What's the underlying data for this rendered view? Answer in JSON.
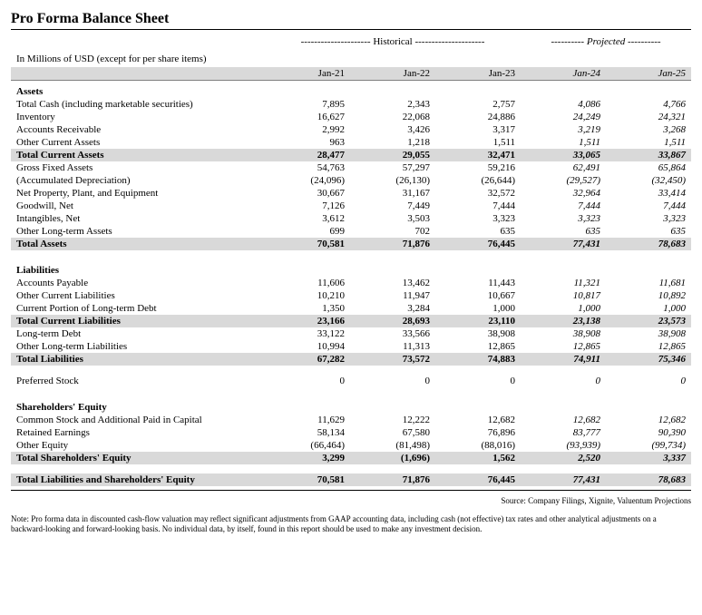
{
  "title": "Pro Forma Balance Sheet",
  "subtitle": "In Millions of USD (except for per share items)",
  "group_headers": {
    "historical_label": "Historical",
    "projected_label": "Projected"
  },
  "columns": [
    "Jan-21",
    "Jan-22",
    "Jan-23",
    "Jan-24",
    "Jan-25"
  ],
  "projected_start_index": 3,
  "sections": [
    {
      "type": "section",
      "label": "Assets"
    },
    {
      "type": "row",
      "label": "Total Cash (including marketable securities)",
      "vals": [
        "7,895",
        "2,343",
        "2,757",
        "4,086",
        "4,766"
      ]
    },
    {
      "type": "row",
      "label": "Inventory",
      "vals": [
        "16,627",
        "22,068",
        "24,886",
        "24,249",
        "24,321"
      ]
    },
    {
      "type": "row",
      "label": "Accounts Receivable",
      "vals": [
        "2,992",
        "3,426",
        "3,317",
        "3,219",
        "3,268"
      ]
    },
    {
      "type": "row",
      "label": "Other Current Assets",
      "vals": [
        "963",
        "1,218",
        "1,511",
        "1,511",
        "1,511"
      ]
    },
    {
      "type": "total",
      "label": "Total Current Assets",
      "vals": [
        "28,477",
        "29,055",
        "32,471",
        "33,065",
        "33,867"
      ]
    },
    {
      "type": "row",
      "label": "Gross Fixed Assets",
      "vals": [
        "54,763",
        "57,297",
        "59,216",
        "62,491",
        "65,864"
      ]
    },
    {
      "type": "row",
      "label": "(Accumulated Depreciation)",
      "vals": [
        "(24,096)",
        "(26,130)",
        "(26,644)",
        "(29,527)",
        "(32,450)"
      ]
    },
    {
      "type": "row",
      "label": "Net Property, Plant, and Equipment",
      "vals": [
        "30,667",
        "31,167",
        "32,572",
        "32,964",
        "33,414"
      ]
    },
    {
      "type": "row",
      "label": "Goodwill, Net",
      "vals": [
        "7,126",
        "7,449",
        "7,444",
        "7,444",
        "7,444"
      ]
    },
    {
      "type": "row",
      "label": "Intangibles, Net",
      "vals": [
        "3,612",
        "3,503",
        "3,323",
        "3,323",
        "3,323"
      ]
    },
    {
      "type": "row",
      "label": "Other Long-term Assets",
      "vals": [
        "699",
        "702",
        "635",
        "635",
        "635"
      ]
    },
    {
      "type": "total",
      "label": "Total Assets",
      "vals": [
        "70,581",
        "71,876",
        "76,445",
        "77,431",
        "78,683"
      ]
    },
    {
      "type": "spacer"
    },
    {
      "type": "section",
      "label": "Liabilities"
    },
    {
      "type": "row",
      "label": "Accounts Payable",
      "vals": [
        "11,606",
        "13,462",
        "11,443",
        "11,321",
        "11,681"
      ]
    },
    {
      "type": "row",
      "label": "Other Current Liabilities",
      "vals": [
        "10,210",
        "11,947",
        "10,667",
        "10,817",
        "10,892"
      ]
    },
    {
      "type": "row",
      "label": "Current Portion of Long-term Debt",
      "vals": [
        "1,350",
        "3,284",
        "1,000",
        "1,000",
        "1,000"
      ]
    },
    {
      "type": "total",
      "label": "Total Current Liabilities",
      "vals": [
        "23,166",
        "28,693",
        "23,110",
        "23,138",
        "23,573"
      ]
    },
    {
      "type": "row",
      "label": "Long-term Debt",
      "vals": [
        "33,122",
        "33,566",
        "38,908",
        "38,908",
        "38,908"
      ]
    },
    {
      "type": "row",
      "label": "Other Long-term Liabilities",
      "vals": [
        "10,994",
        "11,313",
        "12,865",
        "12,865",
        "12,865"
      ]
    },
    {
      "type": "total",
      "label": "Total Liabilities",
      "vals": [
        "67,282",
        "73,572",
        "74,883",
        "74,911",
        "75,346"
      ]
    },
    {
      "type": "spacer"
    },
    {
      "type": "row",
      "label": "Preferred Stock",
      "vals": [
        "0",
        "0",
        "0",
        "0",
        "0"
      ]
    },
    {
      "type": "spacer"
    },
    {
      "type": "section",
      "label": "Shareholders' Equity"
    },
    {
      "type": "row",
      "label": "Common Stock and Additional Paid in Capital",
      "vals": [
        "11,629",
        "12,222",
        "12,682",
        "12,682",
        "12,682"
      ]
    },
    {
      "type": "row",
      "label": "Retained Earnings",
      "vals": [
        "58,134",
        "67,580",
        "76,896",
        "83,777",
        "90,390"
      ]
    },
    {
      "type": "row",
      "label": "Other Equity",
      "vals": [
        "(66,464)",
        "(81,498)",
        "(88,016)",
        "(93,939)",
        "(99,734)"
      ]
    },
    {
      "type": "total",
      "label": "Total Shareholders' Equity",
      "vals": [
        "3,299",
        "(1,696)",
        "1,562",
        "2,520",
        "3,337"
      ]
    },
    {
      "type": "spacer"
    },
    {
      "type": "grand",
      "label": "Total Liabilities and Shareholders' Equity",
      "vals": [
        "70,581",
        "71,876",
        "76,445",
        "77,431",
        "78,683"
      ]
    }
  ],
  "source": "Source: Company Filings, Xignite, Valuentum Projections",
  "note": "Note: Pro forma data in discounted cash-flow valuation may reflect significant adjustments from GAAP accounting data, including cash (not effective) tax rates and other analytical adjustments on a backward-looking and forward-looking basis. No individual data, by itself, found in this report should be used to make any investment decision."
}
